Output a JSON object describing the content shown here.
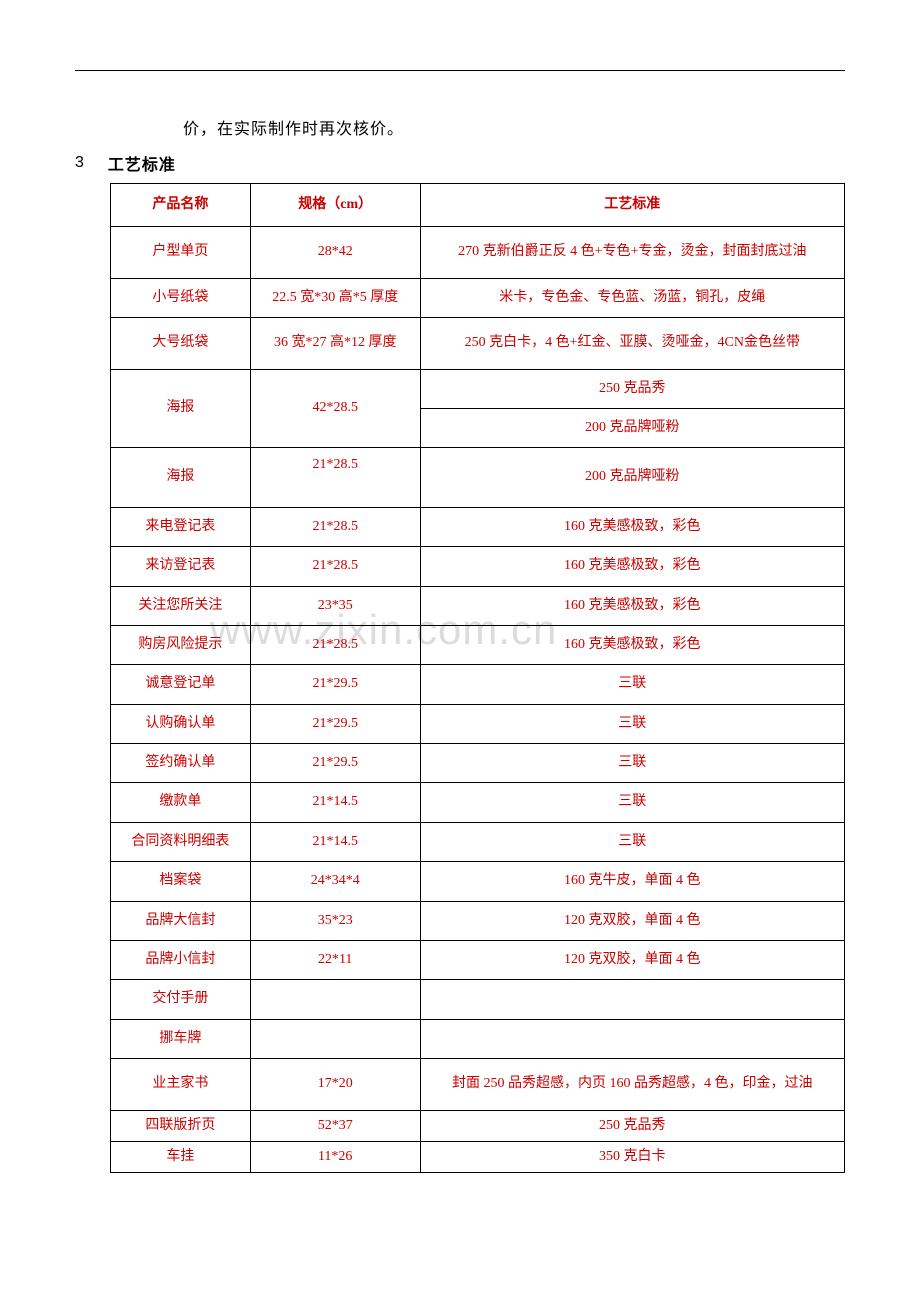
{
  "topLine": true,
  "noteText": "价，在实际制作时再次核价。",
  "sectionNum": "3",
  "sectionTitle": "工艺标准",
  "watermark": "www.zixin.com.cn",
  "table": {
    "headers": {
      "name": "产品名称",
      "spec": "规格（cm）",
      "std": "工艺标准"
    },
    "rows": [
      {
        "name": "户型单页",
        "spec": "28*42",
        "std": "270 克新伯爵正反 4 色+专色+专金，烫金，封面封底过油",
        "tall": true
      },
      {
        "name": "小号纸袋",
        "spec": "22.5 宽*30 高*5 厚度",
        "std": "米卡，专色金、专色蓝、汤蓝，铜孔，皮绳"
      },
      {
        "name": "大号纸袋",
        "spec": "36 宽*27 高*12 厚度",
        "std": "250 克白卡，4 色+红金、亚膜、烫哑金，4CN金色丝带",
        "tall": true
      },
      {
        "name": "海报",
        "spec": "42*28.5",
        "std_split": [
          "250 克品秀",
          "200 克品牌哑粉"
        ],
        "nameRowspan": 2,
        "specRowspan": 2
      },
      {
        "name": "海报",
        "spec": "21*28.5",
        "std": "200 克品牌哑粉",
        "specTall": true
      },
      {
        "name": "来电登记表",
        "spec": "21*28.5",
        "std": "160 克美感极致，彩色"
      },
      {
        "name": "来访登记表",
        "spec": "21*28.5",
        "std": "160 克美感极致，彩色"
      },
      {
        "name": "关注您所关注",
        "spec": "23*35",
        "std": "160 克美感极致，彩色"
      },
      {
        "name": "购房风险提示",
        "spec": "21*28.5",
        "std": "160 克美感极致，彩色"
      },
      {
        "name": "诚意登记单",
        "spec": "21*29.5",
        "std": "三联"
      },
      {
        "name": "认购确认单",
        "spec": "21*29.5",
        "std": "三联"
      },
      {
        "name": "签约确认单",
        "spec": "21*29.5",
        "std": "三联"
      },
      {
        "name": "缴款单",
        "spec": "21*14.5",
        "std": "三联"
      },
      {
        "name": "合同资料明细表",
        "spec": "21*14.5",
        "std": "三联"
      },
      {
        "name": "档案袋",
        "spec": "24*34*4",
        "std": "160 克牛皮，单面 4 色"
      },
      {
        "name": "品牌大信封",
        "spec": "35*23",
        "std": "120 克双胶，单面 4 色"
      },
      {
        "name": "品牌小信封",
        "spec": "22*11",
        "std": "120 克双胶，单面 4 色"
      },
      {
        "name": "交付手册",
        "spec": "",
        "std": ""
      },
      {
        "name": "挪车牌",
        "spec": "",
        "std": ""
      },
      {
        "name": "业主家书",
        "spec": "17*20",
        "std": "封面 250 品秀超感，内页 160 品秀超感，4 色，印金，过油",
        "tall": true
      },
      {
        "name": "四联版折页",
        "spec": "52*37",
        "std": "250 克品秀",
        "narrow": true
      },
      {
        "name": "车挂",
        "spec": "11*26",
        "std": "350 克白卡",
        "narrow": true
      }
    ]
  }
}
